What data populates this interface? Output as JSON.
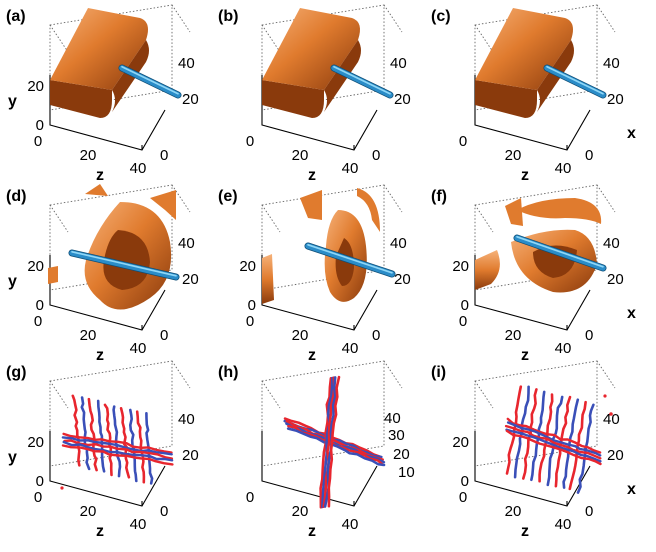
{
  "panels": [
    {
      "label": "(a)",
      "y_axis_label": "y",
      "y_ticks": [
        "20",
        "0"
      ],
      "z_axis_label": "z",
      "z_ticks": [
        "0",
        "20",
        "40"
      ],
      "side_axis_label": "",
      "side_ticks": [
        "40",
        "20",
        "0"
      ],
      "content": "slab-rod"
    },
    {
      "label": "(b)",
      "y_axis_label": "",
      "y_ticks": [],
      "z_axis_label": "z",
      "z_ticks": [
        "0",
        "20",
        "40"
      ],
      "side_axis_label": "",
      "side_ticks": [
        "40",
        "20",
        "0"
      ],
      "content": "slab-rod"
    },
    {
      "label": "(c)",
      "y_axis_label": "",
      "y_ticks": [],
      "z_axis_label": "z",
      "z_ticks": [
        "0",
        "20",
        "40"
      ],
      "side_axis_label": "x",
      "side_ticks": [
        "40",
        "20",
        "0"
      ],
      "content": "slab-rod"
    },
    {
      "label": "(d)",
      "y_axis_label": "y",
      "y_ticks": [
        "20",
        "0"
      ],
      "z_axis_label": "z",
      "z_ticks": [
        "0",
        "20",
        "40"
      ],
      "side_axis_label": "",
      "side_ticks": [
        "40",
        "20",
        "0"
      ],
      "content": "shell-d"
    },
    {
      "label": "(e)",
      "y_axis_label": "",
      "y_ticks": [
        "20",
        "0"
      ],
      "z_axis_label": "z",
      "z_ticks": [
        "0",
        "20",
        "40"
      ],
      "side_axis_label": "",
      "side_ticks": [
        "40",
        "20",
        "0"
      ],
      "content": "shell-e"
    },
    {
      "label": "(f)",
      "y_axis_label": "",
      "y_ticks": [
        "20",
        "0"
      ],
      "z_axis_label": "z",
      "z_ticks": [
        "0",
        "20",
        "40"
      ],
      "side_axis_label": "x",
      "side_ticks": [
        "40",
        "20",
        "0"
      ],
      "content": "shell-f"
    },
    {
      "label": "(g)",
      "y_axis_label": "y",
      "y_ticks": [
        "20",
        "0"
      ],
      "z_axis_label": "z",
      "z_ticks": [
        "0",
        "20",
        "40"
      ],
      "side_axis_label": "",
      "side_ticks": [
        "40",
        "20",
        "0"
      ],
      "content": "lines-g"
    },
    {
      "label": "(h)",
      "y_axis_label": "",
      "y_ticks": [],
      "z_axis_label": "z",
      "z_ticks": [
        "0",
        "20",
        "40"
      ],
      "side_axis_label": "",
      "side_ticks": [
        "40",
        "30",
        "20",
        "10"
      ],
      "content": "lines-h"
    },
    {
      "label": "(i)",
      "y_axis_label": "",
      "y_ticks": [
        "20",
        "0"
      ],
      "z_axis_label": "z",
      "z_ticks": [
        "0",
        "20",
        "40"
      ],
      "side_axis_label": "x",
      "side_ticks": [
        "40",
        "20",
        "0"
      ],
      "content": "lines-i"
    }
  ],
  "colors": {
    "surface": "#e07b2e",
    "surface_dark": "#8a3a0c",
    "surface_light": "#f6b27a",
    "rod": "#2a8cc8",
    "line_red": "#e8262e",
    "line_blue": "#3a4fb8"
  }
}
